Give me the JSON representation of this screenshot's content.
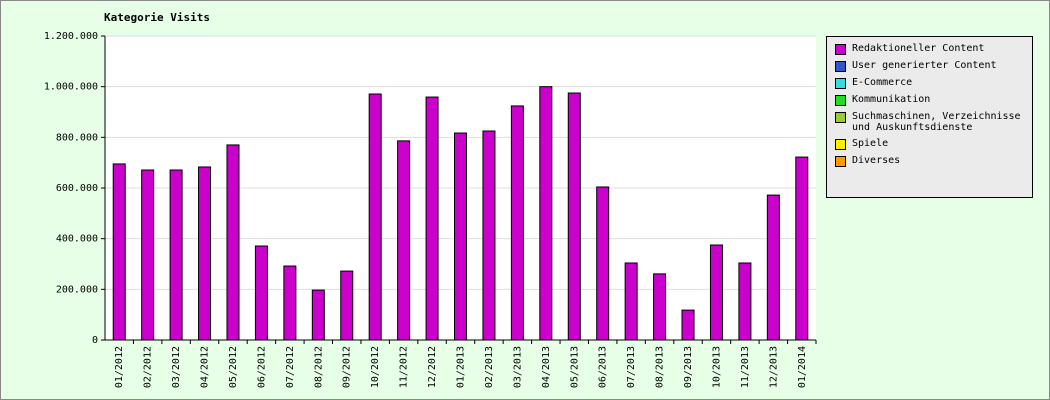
{
  "chart_data": {
    "type": "bar",
    "stacked": true,
    "title": "Kategorie Visits",
    "categories": [
      "01/2012",
      "02/2012",
      "03/2012",
      "04/2012",
      "05/2012",
      "06/2012",
      "07/2012",
      "08/2012",
      "09/2012",
      "10/2012",
      "11/2012",
      "12/2012",
      "01/2013",
      "02/2013",
      "03/2013",
      "04/2013",
      "05/2013",
      "06/2013",
      "07/2013",
      "08/2013",
      "09/2013",
      "10/2013",
      "11/2013",
      "12/2013",
      "01/2014"
    ],
    "series": [
      {
        "name": "Redaktioneller Content",
        "color": "#cc00cc",
        "values": [
          695000,
          671000,
          671000,
          683000,
          770000,
          371000,
          292000,
          197000,
          272000,
          971000,
          786000,
          959000,
          817000,
          825000,
          924000,
          1000000,
          975000,
          604000,
          304000,
          261000,
          118000,
          375000,
          304000,
          572000,
          722000
        ]
      },
      {
        "name": "User generierter Content",
        "color": "#3355cc",
        "values": [
          0,
          0,
          0,
          0,
          0,
          0,
          0,
          0,
          0,
          0,
          0,
          0,
          0,
          0,
          0,
          0,
          0,
          0,
          0,
          0,
          0,
          0,
          0,
          0,
          0
        ]
      },
      {
        "name": "E-Commerce",
        "color": "#33dddd",
        "values": [
          0,
          0,
          0,
          0,
          0,
          0,
          0,
          0,
          0,
          0,
          0,
          0,
          0,
          0,
          0,
          0,
          0,
          0,
          0,
          0,
          0,
          0,
          0,
          0,
          0
        ]
      },
      {
        "name": "Kommunikation",
        "color": "#22dd22",
        "values": [
          0,
          0,
          0,
          0,
          0,
          0,
          0,
          0,
          0,
          0,
          0,
          0,
          0,
          0,
          0,
          0,
          0,
          0,
          0,
          0,
          0,
          0,
          0,
          0,
          0
        ]
      },
      {
        "name": "Suchmaschinen, Verzeichnisse und Auskunftsdienste",
        "color": "#99cc33",
        "values": [
          0,
          0,
          0,
          0,
          0,
          0,
          0,
          0,
          0,
          0,
          0,
          0,
          0,
          0,
          0,
          0,
          0,
          0,
          0,
          0,
          0,
          0,
          0,
          0,
          0
        ]
      },
      {
        "name": "Spiele",
        "color": "#ffee00",
        "values": [
          0,
          0,
          0,
          0,
          0,
          0,
          0,
          0,
          0,
          0,
          0,
          0,
          0,
          0,
          0,
          0,
          0,
          0,
          0,
          0,
          0,
          0,
          0,
          0,
          0
        ]
      },
      {
        "name": "Diverses",
        "color": "#ff9900",
        "values": [
          0,
          0,
          0,
          0,
          0,
          0,
          0,
          0,
          0,
          0,
          0,
          0,
          0,
          0,
          0,
          0,
          0,
          0,
          0,
          0,
          0,
          0,
          0,
          0,
          0
        ]
      }
    ],
    "ylim": [
      0,
      1200000
    ],
    "yticks": [
      0,
      {
        "value": 200000,
        "label": "200.000"
      },
      {
        "value": 400000,
        "label": "400.000"
      },
      {
        "value": 600000,
        "label": "600.000"
      },
      {
        "value": 800000,
        "label": "800.000"
      },
      {
        "value": 1000000,
        "label": "1.000.000"
      },
      {
        "value": 1200000,
        "label": "1.200.000"
      }
    ],
    "grid": true,
    "legend": "right"
  }
}
